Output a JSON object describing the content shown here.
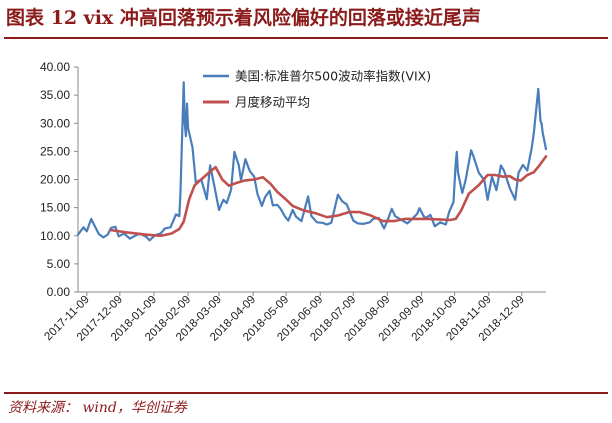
{
  "header": {
    "title": "图表 12 vix 冲高回落预示着风险偏好的回落或接近尾声"
  },
  "footer": {
    "source": "资料来源： wind，华创证券"
  },
  "colors": {
    "accent": "#8b1a1a",
    "vix_line": "#4a7ebb",
    "ma_line": "#c0504d"
  },
  "chart_data": {
    "type": "line",
    "title": "",
    "xlabel": "",
    "ylabel": "",
    "ylim": [
      0,
      40
    ],
    "y_ticks": [
      "0.00",
      "5.00",
      "10.00",
      "15.00",
      "20.00",
      "25.00",
      "30.00",
      "35.00",
      "40.00"
    ],
    "x_tick_labels": [
      "2017-11-09",
      "2017-12-09",
      "2018-01-09",
      "2018-02-09",
      "2018-03-09",
      "2018-04-09",
      "2018-05-09",
      "2018-06-09",
      "2018-07-09",
      "2018-08-09",
      "2018-09-09",
      "2018-10-09",
      "2018-11-09",
      "2018-12-09"
    ],
    "x_range": [
      "2017-11-01",
      "2018-12-31"
    ],
    "legend_position": "top-right",
    "series": [
      {
        "name": "美国:标准普尔500波动率指数(VIX)",
        "color": "#4a7ebb",
        "points": [
          [
            "2017-11-01",
            10.2
          ],
          [
            "2017-11-06",
            11.5
          ],
          [
            "2017-11-09",
            10.8
          ],
          [
            "2017-11-13",
            13.0
          ],
          [
            "2017-11-16",
            11.8
          ],
          [
            "2017-11-20",
            10.3
          ],
          [
            "2017-11-24",
            9.7
          ],
          [
            "2017-11-28",
            10.2
          ],
          [
            "2017-12-01",
            11.4
          ],
          [
            "2017-12-05",
            11.6
          ],
          [
            "2017-12-08",
            9.9
          ],
          [
            "2017-12-13",
            10.4
          ],
          [
            "2017-12-18",
            9.5
          ],
          [
            "2017-12-22",
            9.9
          ],
          [
            "2017-12-27",
            10.4
          ],
          [
            "2018-01-02",
            9.8
          ],
          [
            "2018-01-05",
            9.2
          ],
          [
            "2018-01-10",
            10.1
          ],
          [
            "2018-01-15",
            10.4
          ],
          [
            "2018-01-19",
            11.3
          ],
          [
            "2018-01-24",
            11.5
          ],
          [
            "2018-01-29",
            13.8
          ],
          [
            "2018-02-01",
            13.5
          ],
          [
            "2018-02-02",
            17.3
          ],
          [
            "2018-02-05",
            37.3
          ],
          [
            "2018-02-06",
            29.9
          ],
          [
            "2018-02-07",
            27.7
          ],
          [
            "2018-02-08",
            33.5
          ],
          [
            "2018-02-09",
            29.1
          ],
          [
            "2018-02-13",
            25.7
          ],
          [
            "2018-02-16",
            19.5
          ],
          [
            "2018-02-21",
            20.0
          ],
          [
            "2018-02-26",
            16.5
          ],
          [
            "2018-03-01",
            22.5
          ],
          [
            "2018-03-05",
            18.7
          ],
          [
            "2018-03-09",
            14.6
          ],
          [
            "2018-03-13",
            16.4
          ],
          [
            "2018-03-16",
            15.8
          ],
          [
            "2018-03-20",
            18.2
          ],
          [
            "2018-03-23",
            24.9
          ],
          [
            "2018-03-27",
            22.5
          ],
          [
            "2018-03-29",
            19.9
          ],
          [
            "2018-04-02",
            23.6
          ],
          [
            "2018-04-06",
            21.5
          ],
          [
            "2018-04-10",
            20.5
          ],
          [
            "2018-04-13",
            17.4
          ],
          [
            "2018-04-17",
            15.3
          ],
          [
            "2018-04-20",
            16.9
          ],
          [
            "2018-04-24",
            18.0
          ],
          [
            "2018-04-27",
            15.4
          ],
          [
            "2018-05-01",
            15.5
          ],
          [
            "2018-05-04",
            14.8
          ],
          [
            "2018-05-08",
            13.4
          ],
          [
            "2018-05-11",
            12.7
          ],
          [
            "2018-05-15",
            14.6
          ],
          [
            "2018-05-18",
            13.4
          ],
          [
            "2018-05-23",
            12.6
          ],
          [
            "2018-05-29",
            17.0
          ],
          [
            "2018-06-01",
            13.5
          ],
          [
            "2018-06-06",
            12.4
          ],
          [
            "2018-06-11",
            12.3
          ],
          [
            "2018-06-15",
            12.0
          ],
          [
            "2018-06-19",
            12.3
          ],
          [
            "2018-06-25",
            17.3
          ],
          [
            "2018-06-29",
            16.1
          ],
          [
            "2018-07-03",
            15.6
          ],
          [
            "2018-07-09",
            12.7
          ],
          [
            "2018-07-13",
            12.2
          ],
          [
            "2018-07-18",
            12.1
          ],
          [
            "2018-07-24",
            12.4
          ],
          [
            "2018-07-27",
            13.0
          ],
          [
            "2018-08-01",
            13.2
          ],
          [
            "2018-08-06",
            11.3
          ],
          [
            "2018-08-10",
            13.2
          ],
          [
            "2018-08-13",
            14.8
          ],
          [
            "2018-08-16",
            13.5
          ],
          [
            "2018-08-21",
            12.9
          ],
          [
            "2018-08-27",
            12.2
          ],
          [
            "2018-08-31",
            12.9
          ],
          [
            "2018-09-05",
            13.9
          ],
          [
            "2018-09-07",
            14.9
          ],
          [
            "2018-09-12",
            13.1
          ],
          [
            "2018-09-17",
            13.7
          ],
          [
            "2018-09-21",
            11.7
          ],
          [
            "2018-09-26",
            12.4
          ],
          [
            "2018-10-01",
            12.0
          ],
          [
            "2018-10-04",
            14.2
          ],
          [
            "2018-10-08",
            16.0
          ],
          [
            "2018-10-10",
            22.9
          ],
          [
            "2018-10-11",
            24.9
          ],
          [
            "2018-10-12",
            21.3
          ],
          [
            "2018-10-16",
            17.6
          ],
          [
            "2018-10-19",
            19.9
          ],
          [
            "2018-10-24",
            25.2
          ],
          [
            "2018-10-26",
            24.2
          ],
          [
            "2018-10-31",
            21.2
          ],
          [
            "2018-11-05",
            19.9
          ],
          [
            "2018-11-08",
            16.4
          ],
          [
            "2018-11-12",
            20.5
          ],
          [
            "2018-11-16",
            18.1
          ],
          [
            "2018-11-20",
            22.5
          ],
          [
            "2018-11-23",
            21.5
          ],
          [
            "2018-11-28",
            18.5
          ],
          [
            "2018-12-03",
            16.4
          ],
          [
            "2018-12-06",
            21.2
          ],
          [
            "2018-12-10",
            22.6
          ],
          [
            "2018-12-14",
            21.6
          ],
          [
            "2018-12-18",
            25.6
          ],
          [
            "2018-12-20",
            28.4
          ],
          [
            "2018-12-24",
            36.1
          ],
          [
            "2018-12-26",
            30.4
          ],
          [
            "2018-12-27",
            29.96
          ],
          [
            "2018-12-28",
            28.3
          ],
          [
            "2018-12-31",
            25.4
          ]
        ]
      },
      {
        "name": "月度移动平均",
        "color": "#c0504d",
        "points": [
          [
            "2017-12-01",
            11.0
          ],
          [
            "2017-12-15",
            10.6
          ],
          [
            "2018-01-01",
            10.2
          ],
          [
            "2018-01-15",
            10.0
          ],
          [
            "2018-01-25",
            10.4
          ],
          [
            "2018-02-01",
            11.2
          ],
          [
            "2018-02-05",
            12.5
          ],
          [
            "2018-02-10",
            16.5
          ],
          [
            "2018-02-15",
            19.0
          ],
          [
            "2018-02-22",
            20.2
          ],
          [
            "2018-03-01",
            21.4
          ],
          [
            "2018-03-06",
            22.2
          ],
          [
            "2018-03-12",
            20.0
          ],
          [
            "2018-03-18",
            18.9
          ],
          [
            "2018-03-25",
            19.4
          ],
          [
            "2018-04-01",
            19.8
          ],
          [
            "2018-04-10",
            20.0
          ],
          [
            "2018-04-18",
            20.4
          ],
          [
            "2018-04-25",
            19.2
          ],
          [
            "2018-05-01",
            17.8
          ],
          [
            "2018-05-08",
            16.6
          ],
          [
            "2018-05-15",
            15.3
          ],
          [
            "2018-05-25",
            14.5
          ],
          [
            "2018-06-05",
            14.0
          ],
          [
            "2018-06-15",
            13.3
          ],
          [
            "2018-06-25",
            13.6
          ],
          [
            "2018-07-05",
            14.2
          ],
          [
            "2018-07-15",
            14.2
          ],
          [
            "2018-07-25",
            13.6
          ],
          [
            "2018-08-05",
            12.6
          ],
          [
            "2018-08-15",
            12.6
          ],
          [
            "2018-08-25",
            13.0
          ],
          [
            "2018-09-05",
            13.0
          ],
          [
            "2018-09-15",
            13.0
          ],
          [
            "2018-09-25",
            12.9
          ],
          [
            "2018-10-05",
            12.8
          ],
          [
            "2018-10-10",
            13.0
          ],
          [
            "2018-10-15",
            14.5
          ],
          [
            "2018-10-22",
            17.5
          ],
          [
            "2018-10-31",
            19.0
          ],
          [
            "2018-11-08",
            20.8
          ],
          [
            "2018-11-15",
            20.8
          ],
          [
            "2018-11-22",
            20.5
          ],
          [
            "2018-11-28",
            20.6
          ],
          [
            "2018-12-03",
            20.0
          ],
          [
            "2018-12-08",
            19.8
          ],
          [
            "2018-12-14",
            20.8
          ],
          [
            "2018-12-20",
            21.3
          ],
          [
            "2018-12-25",
            22.5
          ],
          [
            "2018-12-31",
            24.1
          ]
        ]
      }
    ]
  }
}
